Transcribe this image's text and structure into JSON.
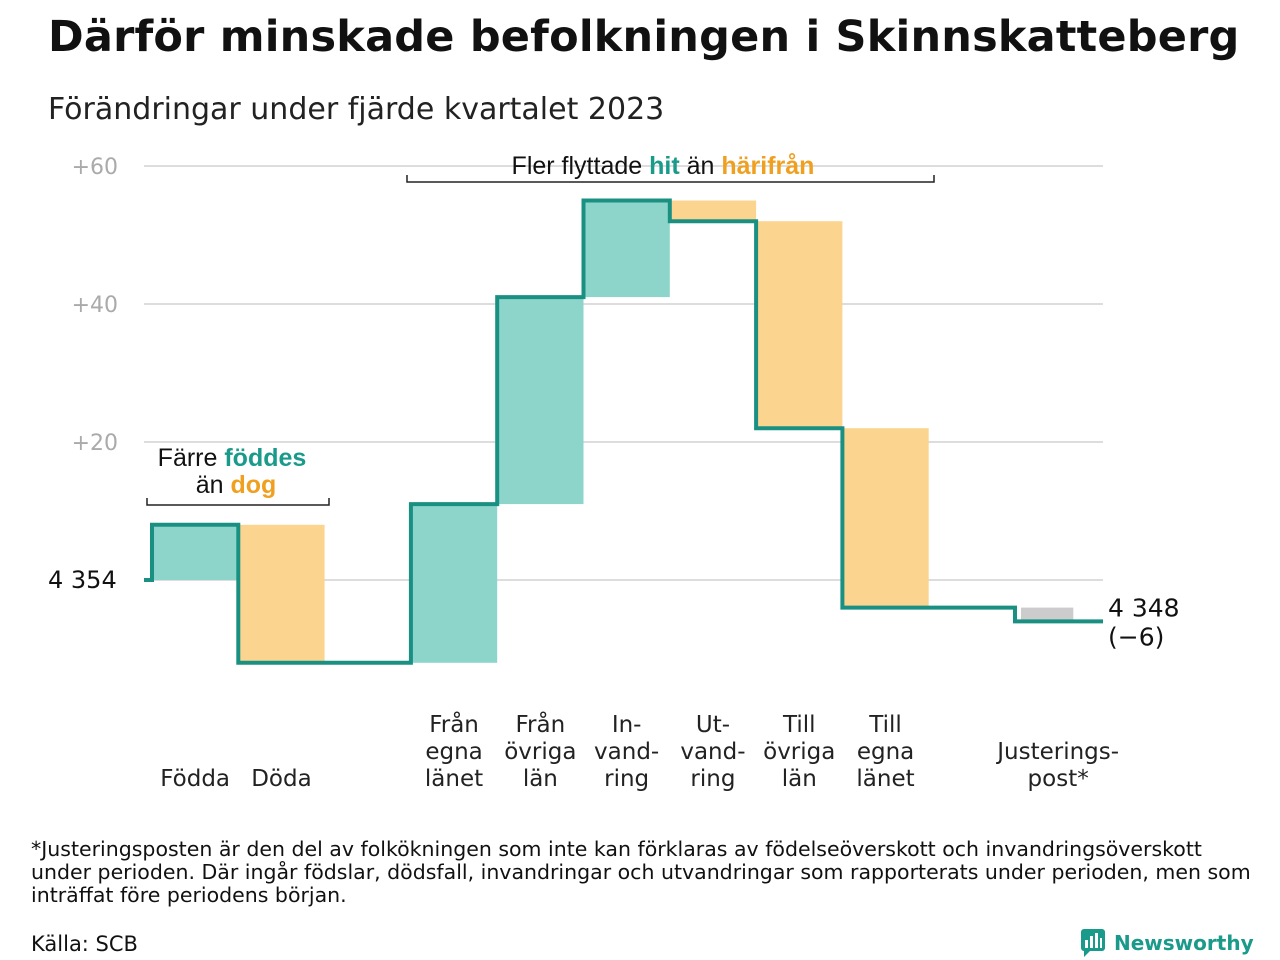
{
  "title": "Därför minskade befolkningen i Skinnskatteberg",
  "subtitle": "Förändringar under fjärde kvartalet 2023",
  "chart_data": {
    "type": "waterfall",
    "start_label": "4 354",
    "start_value": 4354,
    "end_label": "4 348",
    "end_change_label": "(−6)",
    "end_value": 4348,
    "y_axis_ticks": [
      "+60",
      "+40",
      "+20"
    ],
    "y_tick_values": [
      60,
      40,
      20
    ],
    "ylim": [
      -12,
      62
    ],
    "steps": [
      {
        "label_lines": [
          "Födda"
        ],
        "value": 8,
        "kind": "increase"
      },
      {
        "label_lines": [
          "Döda"
        ],
        "value": -20,
        "kind": "decrease"
      },
      {
        "label_lines": [
          ""
        ],
        "value": 0,
        "kind": "none"
      },
      {
        "label_lines": [
          "Från",
          "egna",
          "länet"
        ],
        "value": 23,
        "kind": "increase"
      },
      {
        "label_lines": [
          "Från",
          "övriga",
          "län"
        ],
        "value": 30,
        "kind": "increase"
      },
      {
        "label_lines": [
          "In-",
          "vand-",
          "ring"
        ],
        "value": 14,
        "kind": "increase"
      },
      {
        "label_lines": [
          "Ut-",
          "vand-",
          "ring"
        ],
        "value": -3,
        "kind": "decrease"
      },
      {
        "label_lines": [
          "Till",
          "övriga",
          "län"
        ],
        "value": -30,
        "kind": "decrease"
      },
      {
        "label_lines": [
          "Till",
          "egna",
          "länet"
        ],
        "value": -26,
        "kind": "decrease"
      },
      {
        "label_lines": [
          ""
        ],
        "value": 0,
        "kind": "none"
      },
      {
        "label_lines": [
          "Justerings-",
          "post*"
        ],
        "value": -2,
        "kind": "adjustment"
      }
    ],
    "annotations": {
      "births": {
        "line1": "Färre ",
        "line1_highlight": "föddes",
        "line2": "än ",
        "line2_highlight": "dog"
      },
      "migration": {
        "prefix": "Fler flyttade ",
        "hit": "hit",
        "middle": " än ",
        "harifran": "härifrån"
      }
    },
    "colors": {
      "increase": "#8dd5cb",
      "decrease": "#fbd58f",
      "adjustment": "#cccccc",
      "line": "#1a9082",
      "teal_text": "#1a9a8a",
      "orange_text": "#f0a020",
      "grid": "#dddddd",
      "tick_text": "#aaaaaa"
    }
  },
  "footnote": "*Justeringsposten är den del av folkökningen som inte kan förklaras av födelseöverskott och invandringsöverskott under perioden. Där ingår födslar, dödsfall, invandringar och utvandringar som rapporterats under perioden, men som inträffat före periodens början.",
  "source": "Källa: SCB",
  "brand": "Newsworthy"
}
